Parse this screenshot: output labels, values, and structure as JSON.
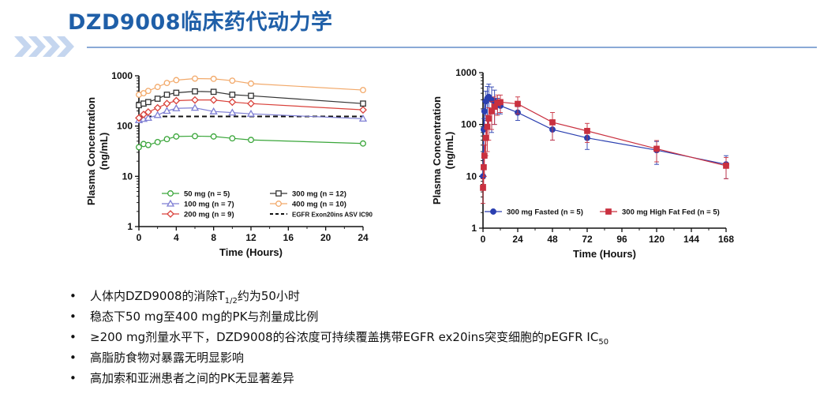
{
  "header": {
    "title": "DZD9008临床药代动力学",
    "accent_color": "#1f5fa8"
  },
  "chart_data": [
    {
      "type": "line",
      "xlabel": "Time (Hours)",
      "ylabel_lines": [
        "Plasma Concentration",
        "(ng/mL)"
      ],
      "xlim": [
        0,
        24
      ],
      "ylim": [
        1,
        1000
      ],
      "yscale": "log",
      "xticks": [
        "0",
        "4",
        "8",
        "12",
        "16",
        "20",
        "24"
      ],
      "yticks": [
        "1",
        "10",
        "100",
        "1000"
      ],
      "legend_position": "bottom-center",
      "series": [
        {
          "name": "50 mg (n = 5)",
          "color": "#3aa63a",
          "marker": "circle",
          "x": [
            0,
            0.5,
            1,
            2,
            3,
            4,
            6,
            8,
            10,
            12,
            24
          ],
          "y": [
            38,
            44,
            42,
            48,
            55,
            62,
            63,
            62,
            57,
            53,
            45
          ]
        },
        {
          "name": "100 mg (n = 7)",
          "color": "#7f7fd4",
          "marker": "triangle",
          "x": [
            0,
            0.5,
            1,
            2,
            3,
            4,
            6,
            8,
            10,
            12,
            24
          ],
          "y": [
            130,
            138,
            145,
            165,
            200,
            225,
            230,
            195,
            185,
            175,
            140
          ]
        },
        {
          "name": "200 mg (n = 9)",
          "color": "#d9413a",
          "marker": "diamond",
          "x": [
            0,
            0.5,
            1,
            2,
            3,
            4,
            6,
            8,
            10,
            12,
            24
          ],
          "y": [
            145,
            170,
            190,
            230,
            280,
            320,
            330,
            330,
            300,
            280,
            210
          ]
        },
        {
          "name": "300 mg (n = 12)",
          "color": "#333333",
          "marker": "square",
          "x": [
            0,
            0.5,
            1,
            2,
            3,
            4,
            6,
            8,
            10,
            12,
            24
          ],
          "y": [
            260,
            280,
            300,
            350,
            420,
            460,
            490,
            480,
            420,
            400,
            280
          ]
        },
        {
          "name": "400 mg (n = 10)",
          "color": "#f2a96a",
          "marker": "circle",
          "x": [
            0,
            0.5,
            1,
            2,
            3,
            4,
            6,
            8,
            10,
            12,
            24
          ],
          "y": [
            420,
            450,
            500,
            600,
            720,
            820,
            880,
            870,
            800,
            700,
            520
          ]
        }
      ],
      "reference_line": {
        "name": "EGFR Exon20ins ASV IC90",
        "y": 155,
        "style": "dashed",
        "color": "#111111"
      }
    },
    {
      "type": "line",
      "xlabel": "Time (Hours)",
      "ylabel_lines": [
        "Plasma Concentration",
        "(ng/mL)"
      ],
      "xlim": [
        0,
        168
      ],
      "ylim": [
        1,
        1000
      ],
      "yscale": "log",
      "xticks": [
        "0",
        "24",
        "48",
        "72",
        "96",
        "120",
        "144",
        "168"
      ],
      "yticks": [
        "1",
        "10",
        "100",
        "1000"
      ],
      "legend_position": "bottom",
      "series": [
        {
          "name": "300 mg Fasted (n = 5)",
          "color": "#2a3fb0",
          "marker": "circle",
          "x": [
            0,
            0.5,
            1,
            2,
            3,
            4,
            6,
            8,
            10,
            12,
            24,
            48,
            72,
            120,
            168
          ],
          "y": [
            10,
            80,
            180,
            280,
            320,
            340,
            300,
            280,
            240,
            230,
            170,
            80,
            55,
            32,
            17
          ],
          "err": [
            4,
            50,
            100,
            160,
            220,
            260,
            230,
            180,
            80,
            70,
            50,
            30,
            22,
            15,
            8
          ]
        },
        {
          "name": "300 mg High Fat Fed (n = 5)",
          "color": "#c9303f",
          "marker": "square",
          "x": [
            0,
            0.5,
            1,
            2,
            3,
            4,
            6,
            8,
            10,
            12,
            24,
            48,
            72,
            120,
            168
          ],
          "y": [
            6,
            15,
            25,
            55,
            90,
            130,
            180,
            220,
            260,
            270,
            250,
            110,
            75,
            34,
            16
          ],
          "err": [
            3,
            8,
            15,
            30,
            60,
            80,
            100,
            120,
            110,
            100,
            90,
            60,
            30,
            15,
            7
          ]
        }
      ]
    }
  ],
  "bullets": [
    {
      "pre": "人体内DZD9008的消除T",
      "sub": "1/2",
      "post": "约为50小时"
    },
    {
      "pre": "稳态下50 mg至400 mg的PK与剂量成比例",
      "sub": "",
      "post": ""
    },
    {
      "pre": "≥200 mg剂量水平下，DZD9008的谷浓度可持续覆盖携带EGFR  ex20ins突变细胞的pEGFR  IC",
      "sub": "50",
      "post": ""
    },
    {
      "pre": "高脂肪食物对暴露无明显影响",
      "sub": "",
      "post": ""
    },
    {
      "pre": "高加索和亚洲患者之间的PK无显著差异",
      "sub": "",
      "post": ""
    }
  ],
  "bullet_symbol": "•"
}
